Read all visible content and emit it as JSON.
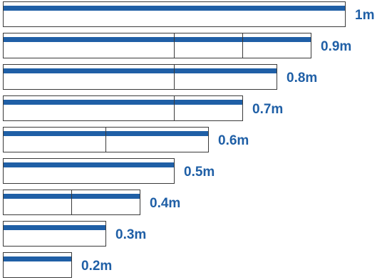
{
  "colors": {
    "stripe": "#1f5fa6",
    "label": "#1f5fa6",
    "border": "#3a3a3a"
  },
  "unit_bar_total": 10,
  "rows": [
    {
      "label": "1m",
      "segments": [
        10
      ]
    },
    {
      "label": "0.9m",
      "segments": [
        5,
        2,
        2
      ]
    },
    {
      "label": "0.8m",
      "segments": [
        5,
        3
      ]
    },
    {
      "label": "0.7m",
      "segments": [
        5,
        2
      ]
    },
    {
      "label": "0.6m",
      "segments": [
        3,
        3
      ]
    },
    {
      "label": "0.5m",
      "segments": [
        5
      ]
    },
    {
      "label": "0.4m",
      "segments": [
        2,
        2
      ]
    },
    {
      "label": "0.3m",
      "segments": [
        3
      ]
    },
    {
      "label": "0.2m",
      "segments": [
        2
      ]
    }
  ]
}
